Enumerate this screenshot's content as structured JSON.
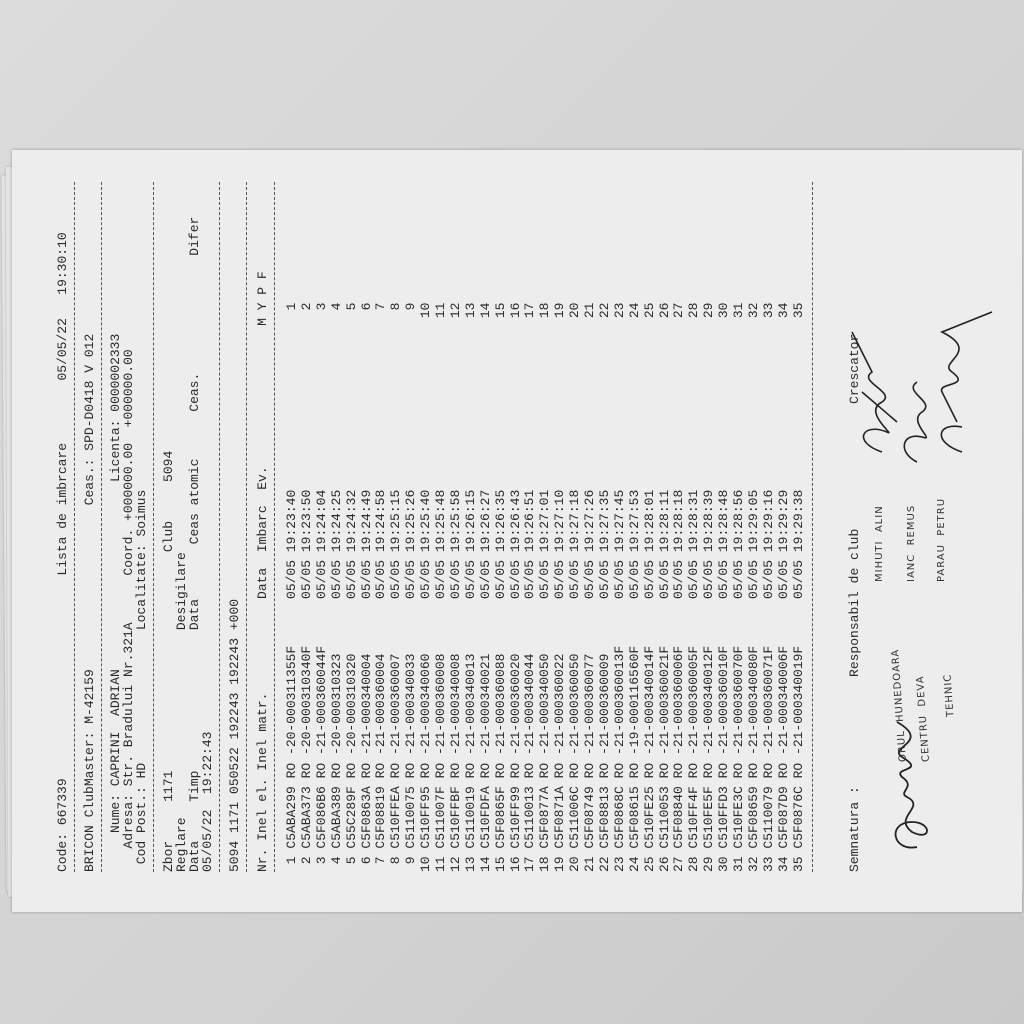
{
  "header": {
    "code": "Code: 667339",
    "title": "Lista de imbrcare",
    "date": "05/05/22",
    "time": "19:30:10",
    "clubmaster": "BRICON ClubMaster: M-42159",
    "clock": "Ceas.: SPD-D0418 V 012",
    "name": "Nume: CAPRINI  ADRIAN",
    "license": "Licenta: 0000002333",
    "address": "Adresa: Str. Bradului Nr.321A",
    "coord": "Coord. +000000.00",
    "coord2": "+000000.00",
    "postcode": "Cod Post.: HD",
    "locality": "Localitate: Soimus"
  },
  "flight": {
    "zbor": "Zbor     1171",
    "club": "Club     5094",
    "reglare": "Reglare",
    "desigilare": "Desigilare",
    "data_timp": "Data     Timp",
    "data2": "Data",
    "ceas_atomic": "Ceas atomic",
    "ceas": "Ceas.",
    "difer": "Difer",
    "reg_value": "05/05/22  19:22:43",
    "code_line": "5094 1171 050522 192243 192243 +000"
  },
  "table": {
    "headers": {
      "nr": "Nr.",
      "ring_el": "Inel el.",
      "ring_matr": "Inel matr.",
      "date": "Data",
      "time": "Imbarc",
      "ev": "Ev.",
      "flags": "M Y P F"
    },
    "rows": [
      [
        "1",
        "C5ABA299",
        "RO",
        "-20-000311355F",
        "05/05",
        "19:23:40",
        "1"
      ],
      [
        "2",
        "C5ABA373",
        "RO",
        "-20-000310340F",
        "05/05",
        "19:23:50",
        "2"
      ],
      [
        "3",
        "C5F086B6",
        "RO",
        "-21-000360044F",
        "05/05",
        "19:24:04",
        "3"
      ],
      [
        "4",
        "C5ABA389",
        "RO",
        "-20-000310323",
        "05/05",
        "19:24:25",
        "4"
      ],
      [
        "5",
        "C55C289F",
        "RO",
        "-20-000310320",
        "05/05",
        "19:24:32",
        "5"
      ],
      [
        "6",
        "C5F0863A",
        "RO",
        "-21-000340004",
        "05/05",
        "19:24:49",
        "6"
      ],
      [
        "7",
        "C5F08819",
        "RO",
        "-21-000360004",
        "05/05",
        "19:24:58",
        "7"
      ],
      [
        "8",
        "C510FFEA",
        "RO",
        "-21-000360007",
        "05/05",
        "19:25:15",
        "8"
      ],
      [
        "9",
        "C5110075",
        "RO",
        "-21-000340033",
        "05/05",
        "19:25:26",
        "9"
      ],
      [
        "10",
        "C510FF95",
        "RO",
        "-21-000340060",
        "05/05",
        "19:25:40",
        "10"
      ],
      [
        "11",
        "C511007F",
        "RO",
        "-21-000360008",
        "05/05",
        "19:25:48",
        "11"
      ],
      [
        "12",
        "C510FFBF",
        "RO",
        "-21-000340008",
        "05/05",
        "19:25:58",
        "12"
      ],
      [
        "13",
        "C5110019",
        "RO",
        "-21-000340013",
        "05/05",
        "19:26:15",
        "13"
      ],
      [
        "14",
        "C510FDFA",
        "RO",
        "-21-000340021",
        "05/05",
        "19:26:27",
        "14"
      ],
      [
        "15",
        "C5F0865F",
        "RO",
        "-21-000360088",
        "05/05",
        "19:26:35",
        "15"
      ],
      [
        "16",
        "C510FF99",
        "RO",
        "-21-000360020",
        "05/05",
        "19:26:43",
        "16"
      ],
      [
        "17",
        "C5110013",
        "RO",
        "-21-000340044",
        "05/05",
        "19:26:51",
        "17"
      ],
      [
        "18",
        "C5F0877A",
        "RO",
        "-21-000340050",
        "05/05",
        "19:27:01",
        "18"
      ],
      [
        "19",
        "C5F0871A",
        "RO",
        "-21-000360022",
        "05/05",
        "19:27:10",
        "19"
      ],
      [
        "20",
        "C511006C",
        "RO",
        "-21-000360050",
        "05/05",
        "19:27:18",
        "20"
      ],
      [
        "21",
        "C5F08749",
        "RO",
        "-21-000360077",
        "05/05",
        "19:27:26",
        "21"
      ],
      [
        "22",
        "C5F08813",
        "RO",
        "-21-000360009",
        "05/05",
        "19:27:35",
        "22"
      ],
      [
        "23",
        "C5F0868C",
        "RO",
        "-21-000360013F",
        "05/05",
        "19:27:45",
        "23"
      ],
      [
        "24",
        "C5F08615",
        "RO",
        "-19-000116560F",
        "05/05",
        "19:27:53",
        "24"
      ],
      [
        "25",
        "C510FE25",
        "RO",
        "-21-000340014F",
        "05/05",
        "19:28:01",
        "25"
      ],
      [
        "26",
        "C5110053",
        "RO",
        "-21-000360021F",
        "05/05",
        "19:28:11",
        "26"
      ],
      [
        "27",
        "C5F08840",
        "RO",
        "-21-000360006F",
        "05/05",
        "19:28:18",
        "27"
      ],
      [
        "28",
        "C510FF4F",
        "RO",
        "-21-000360005F",
        "05/05",
        "19:28:31",
        "28"
      ],
      [
        "29",
        "C510FE5F",
        "RO",
        "-21-000340012F",
        "05/05",
        "19:28:39",
        "29"
      ],
      [
        "30",
        "C510FFD3",
        "RO",
        "-21-000360010F",
        "05/05",
        "19:28:48",
        "30"
      ],
      [
        "31",
        "C510FE3C",
        "RO",
        "-21-000360070F",
        "05/05",
        "19:28:56",
        "31"
      ],
      [
        "32",
        "C5F08659",
        "RO",
        "-21-000340080F",
        "05/05",
        "19:29:05",
        "32"
      ],
      [
        "33",
        "C5110079",
        "RO",
        "-21-000360071F",
        "05/05",
        "19:29:16",
        "33"
      ],
      [
        "34",
        "C5F087D9",
        "RO",
        "-21-000340006F",
        "05/05",
        "19:29:29",
        "34"
      ],
      [
        "35",
        "C5F0876C",
        "RO",
        "-21-000340019F",
        "05/05",
        "19:29:38",
        "35"
      ]
    ]
  },
  "footer": {
    "signature_label": "Semnatura :",
    "club_resp": "Responsabil de club",
    "breeder": "Crescator",
    "names": [
      "MIHUTI  ALIN",
      "IANC  REMUS",
      "PARAU  PETRU"
    ],
    "stamp": [
      "ORUL  HUNEDOARA",
      "CENTRU  DEVA",
      "TEHNIC"
    ]
  }
}
